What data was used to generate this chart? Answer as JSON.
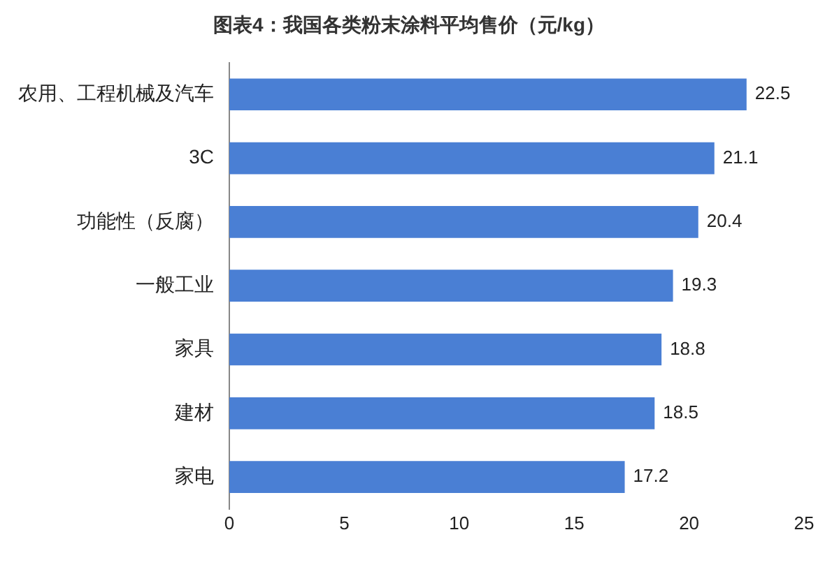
{
  "chart_data": {
    "type": "bar",
    "orientation": "horizontal",
    "title": "图表4：我国各类粉末涂料平均售价（元/kg）",
    "categories": [
      "农用、工程机械及汽车",
      "3C",
      "功能性（反腐）",
      "一般工业",
      "家具",
      "建材",
      "家电"
    ],
    "values": [
      22.5,
      21.1,
      20.4,
      19.3,
      18.8,
      18.5,
      17.2
    ],
    "color": "#4a7fd4",
    "xlim": [
      0,
      25
    ],
    "xticks": [
      0,
      5,
      10,
      15,
      20,
      25
    ],
    "grid": false,
    "legend": false,
    "data_labels": true
  }
}
